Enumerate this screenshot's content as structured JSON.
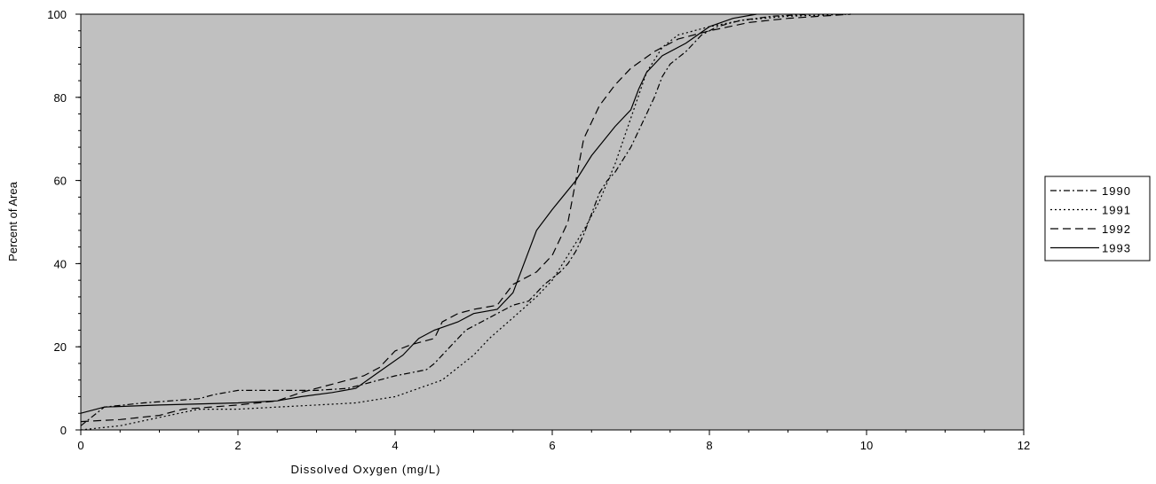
{
  "chart_data": {
    "type": "line",
    "title": "",
    "xlabel": "Dissolved Oxygen (mg/L)",
    "ylabel": "Percent of Area",
    "xlim": [
      0,
      12
    ],
    "ylim": [
      0,
      100
    ],
    "x_ticks": [
      "0",
      "2",
      "4",
      "6",
      "8",
      "10",
      "12"
    ],
    "y_ticks": [
      "0",
      "20",
      "40",
      "60",
      "80",
      "100"
    ],
    "grid": false,
    "legend_position": "right",
    "plot_background": "#c0c0c0",
    "line_color": "#000000",
    "series": [
      {
        "name": "1990",
        "dash": "dash-dot",
        "points": [
          [
            0,
            1
          ],
          [
            0.3,
            5.5
          ],
          [
            0.8,
            6.5
          ],
          [
            1.5,
            7.5
          ],
          [
            1.7,
            8.5
          ],
          [
            2.0,
            9.5
          ],
          [
            2.5,
            9.5
          ],
          [
            3.0,
            9.5
          ],
          [
            3.4,
            10
          ],
          [
            3.8,
            12
          ],
          [
            4.0,
            13
          ],
          [
            4.4,
            14.5
          ],
          [
            4.5,
            16
          ],
          [
            4.7,
            20
          ],
          [
            4.9,
            24
          ],
          [
            5.1,
            26
          ],
          [
            5.3,
            28
          ],
          [
            5.5,
            30
          ],
          [
            5.7,
            31
          ],
          [
            5.9,
            35
          ],
          [
            6.1,
            38
          ],
          [
            6.2,
            40
          ],
          [
            6.3,
            43
          ],
          [
            6.4,
            47
          ],
          [
            6.5,
            52
          ],
          [
            6.6,
            57
          ],
          [
            6.7,
            60
          ],
          [
            6.8,
            62
          ],
          [
            6.9,
            65
          ],
          [
            7.0,
            68
          ],
          [
            7.1,
            72
          ],
          [
            7.2,
            76
          ],
          [
            7.3,
            80
          ],
          [
            7.4,
            85
          ],
          [
            7.5,
            88
          ],
          [
            7.7,
            91
          ],
          [
            7.9,
            95
          ],
          [
            8.1,
            97
          ],
          [
            8.4,
            98.5
          ],
          [
            8.8,
            99.5
          ],
          [
            9.3,
            100
          ]
        ]
      },
      {
        "name": "1991",
        "dash": "dotted",
        "points": [
          [
            0,
            0
          ],
          [
            0.5,
            1
          ],
          [
            1.0,
            3
          ],
          [
            1.5,
            5
          ],
          [
            2.0,
            5
          ],
          [
            2.5,
            5.5
          ],
          [
            3.0,
            6
          ],
          [
            3.5,
            6.5
          ],
          [
            4.0,
            8
          ],
          [
            4.3,
            10
          ],
          [
            4.6,
            12
          ],
          [
            4.8,
            15
          ],
          [
            5.0,
            18
          ],
          [
            5.2,
            22
          ],
          [
            5.5,
            27
          ],
          [
            5.8,
            32
          ],
          [
            6.0,
            36
          ],
          [
            6.2,
            42
          ],
          [
            6.4,
            48
          ],
          [
            6.6,
            55
          ],
          [
            6.8,
            64
          ],
          [
            7.0,
            75
          ],
          [
            7.2,
            86
          ],
          [
            7.4,
            92
          ],
          [
            7.6,
            95
          ],
          [
            8.0,
            97
          ],
          [
            8.4,
            98.5
          ],
          [
            9.0,
            99.5
          ],
          [
            9.8,
            100
          ]
        ]
      },
      {
        "name": "1992",
        "dash": "dashed",
        "points": [
          [
            0,
            2
          ],
          [
            0.5,
            2.5
          ],
          [
            1.0,
            3.5
          ],
          [
            1.3,
            5
          ],
          [
            2.0,
            6
          ],
          [
            2.5,
            7
          ],
          [
            2.8,
            9
          ],
          [
            3.2,
            11
          ],
          [
            3.6,
            13
          ],
          [
            3.8,
            15
          ],
          [
            4.0,
            19
          ],
          [
            4.2,
            20.5
          ],
          [
            4.5,
            22
          ],
          [
            4.6,
            26
          ],
          [
            4.8,
            28
          ],
          [
            5.0,
            29
          ],
          [
            5.3,
            30
          ],
          [
            5.5,
            35
          ],
          [
            5.8,
            38
          ],
          [
            6.0,
            42
          ],
          [
            6.1,
            46
          ],
          [
            6.2,
            50
          ],
          [
            6.3,
            60
          ],
          [
            6.4,
            70
          ],
          [
            6.6,
            78
          ],
          [
            6.8,
            83
          ],
          [
            7.0,
            87
          ],
          [
            7.3,
            91
          ],
          [
            7.6,
            94
          ],
          [
            8.0,
            96
          ],
          [
            8.5,
            98
          ],
          [
            9.0,
            99
          ],
          [
            9.8,
            100
          ]
        ]
      },
      {
        "name": "1993",
        "dash": "solid",
        "points": [
          [
            0,
            4
          ],
          [
            0.3,
            5.5
          ],
          [
            1.0,
            6
          ],
          [
            2.0,
            6.5
          ],
          [
            2.5,
            7
          ],
          [
            2.8,
            8
          ],
          [
            3.2,
            9
          ],
          [
            3.5,
            10
          ],
          [
            3.8,
            14
          ],
          [
            4.1,
            18
          ],
          [
            4.3,
            22
          ],
          [
            4.5,
            24
          ],
          [
            4.8,
            26
          ],
          [
            5.0,
            28
          ],
          [
            5.3,
            29
          ],
          [
            5.5,
            33
          ],
          [
            5.8,
            48
          ],
          [
            6.0,
            53
          ],
          [
            6.3,
            60
          ],
          [
            6.5,
            66
          ],
          [
            6.8,
            73
          ],
          [
            7.0,
            77
          ],
          [
            7.1,
            82
          ],
          [
            7.2,
            86
          ],
          [
            7.4,
            90
          ],
          [
            7.7,
            93
          ],
          [
            8.0,
            97
          ],
          [
            8.3,
            99
          ],
          [
            8.6,
            100
          ]
        ]
      }
    ]
  }
}
